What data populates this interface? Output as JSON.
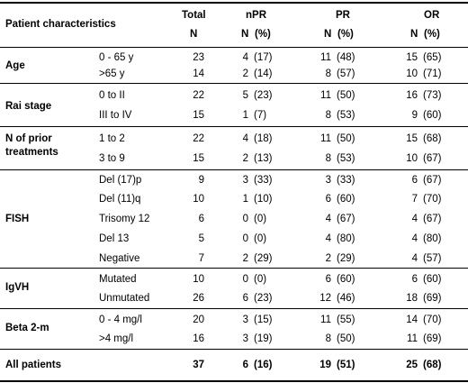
{
  "header": {
    "row1": {
      "characteristics": "Patient characteristics",
      "total": "Total",
      "npr": "nPR",
      "pr": "PR",
      "or": "OR"
    },
    "row2": {
      "total_n": "N",
      "npr_n": "N",
      "npr_pct": "(%)",
      "pr_n": "N",
      "pr_pct": "(%)",
      "or_n": "N",
      "or_pct": "(%)"
    }
  },
  "groups": [
    {
      "name": "Age",
      "rows": [
        {
          "label": "0 - 65 y",
          "total": "23",
          "npr_n": "4",
          "npr_pct": "(17)",
          "pr_n": "11",
          "pr_pct": "(48)",
          "or_n": "15",
          "or_pct": "(65)"
        },
        {
          "label": ">65 y",
          "total": "14",
          "npr_n": "2",
          "npr_pct": "(14)",
          "pr_n": "8",
          "pr_pct": "(57)",
          "or_n": "10",
          "or_pct": "(71)"
        }
      ]
    },
    {
      "name": "Rai stage",
      "rows": [
        {
          "label": "0 to II",
          "total": "22",
          "npr_n": "5",
          "npr_pct": "(23)",
          "pr_n": "11",
          "pr_pct": "(50)",
          "or_n": "16",
          "or_pct": "(73)"
        },
        {
          "label": "III to IV",
          "total": "15",
          "npr_n": "1",
          "npr_pct": "(7)",
          "pr_n": "8",
          "pr_pct": "(53)",
          "or_n": "9",
          "or_pct": "(60)"
        }
      ]
    },
    {
      "name": "N of prior treatments",
      "rows": [
        {
          "label": "1 to 2",
          "total": "22",
          "npr_n": "4",
          "npr_pct": "(18)",
          "pr_n": "11",
          "pr_pct": "(50)",
          "or_n": "15",
          "or_pct": "(68)"
        },
        {
          "label": "3 to 9",
          "total": "15",
          "npr_n": "2",
          "npr_pct": "(13)",
          "pr_n": "8",
          "pr_pct": "(53)",
          "or_n": "10",
          "or_pct": "(67)"
        }
      ]
    },
    {
      "name": "FISH",
      "rows": [
        {
          "label": "Del (17)p",
          "total": "9",
          "npr_n": "3",
          "npr_pct": "(33)",
          "pr_n": "3",
          "pr_pct": "(33)",
          "or_n": "6",
          "or_pct": "(67)"
        },
        {
          "label": "Del (11)q",
          "total": "10",
          "npr_n": "1",
          "npr_pct": "(10)",
          "pr_n": "6",
          "pr_pct": "(60)",
          "or_n": "7",
          "or_pct": "(70)"
        },
        {
          "label": "Trisomy 12",
          "total": "6",
          "npr_n": "0",
          "npr_pct": "(0)",
          "pr_n": "4",
          "pr_pct": "(67)",
          "or_n": "4",
          "or_pct": "(67)"
        },
        {
          "label": "Del 13",
          "total": "5",
          "npr_n": "0",
          "npr_pct": "(0)",
          "pr_n": "4",
          "pr_pct": "(80)",
          "or_n": "4",
          "or_pct": "(80)"
        },
        {
          "label": "Negative",
          "total": "7",
          "npr_n": "2",
          "npr_pct": "(29)",
          "pr_n": "2",
          "pr_pct": "(29)",
          "or_n": "4",
          "or_pct": "(57)"
        }
      ]
    },
    {
      "name": "IgVH",
      "rows": [
        {
          "label": "Mutated",
          "total": "10",
          "npr_n": "0",
          "npr_pct": "(0)",
          "pr_n": "6",
          "pr_pct": "(60)",
          "or_n": "6",
          "or_pct": "(60)"
        },
        {
          "label": "Unmutated",
          "total": "26",
          "npr_n": "6",
          "npr_pct": "(23)",
          "pr_n": "12",
          "pr_pct": "(46)",
          "or_n": "18",
          "or_pct": "(69)"
        }
      ]
    },
    {
      "name": "Beta 2-m",
      "rows": [
        {
          "label": "0 - 4 mg/l",
          "total": "20",
          "npr_n": "3",
          "npr_pct": "(15)",
          "pr_n": "11",
          "pr_pct": "(55)",
          "or_n": "14",
          "or_pct": "(70)"
        },
        {
          "label": ">4 mg/l",
          "total": "16",
          "npr_n": "3",
          "npr_pct": "(19)",
          "pr_n": "8",
          "pr_pct": "(50)",
          "or_n": "11",
          "or_pct": "(69)"
        }
      ]
    }
  ],
  "all_patients": {
    "label": "All patients",
    "total": "37",
    "npr_n": "6",
    "npr_pct": "(16)",
    "pr_n": "19",
    "pr_pct": "(51)",
    "or_n": "25",
    "or_pct": "(68)"
  }
}
